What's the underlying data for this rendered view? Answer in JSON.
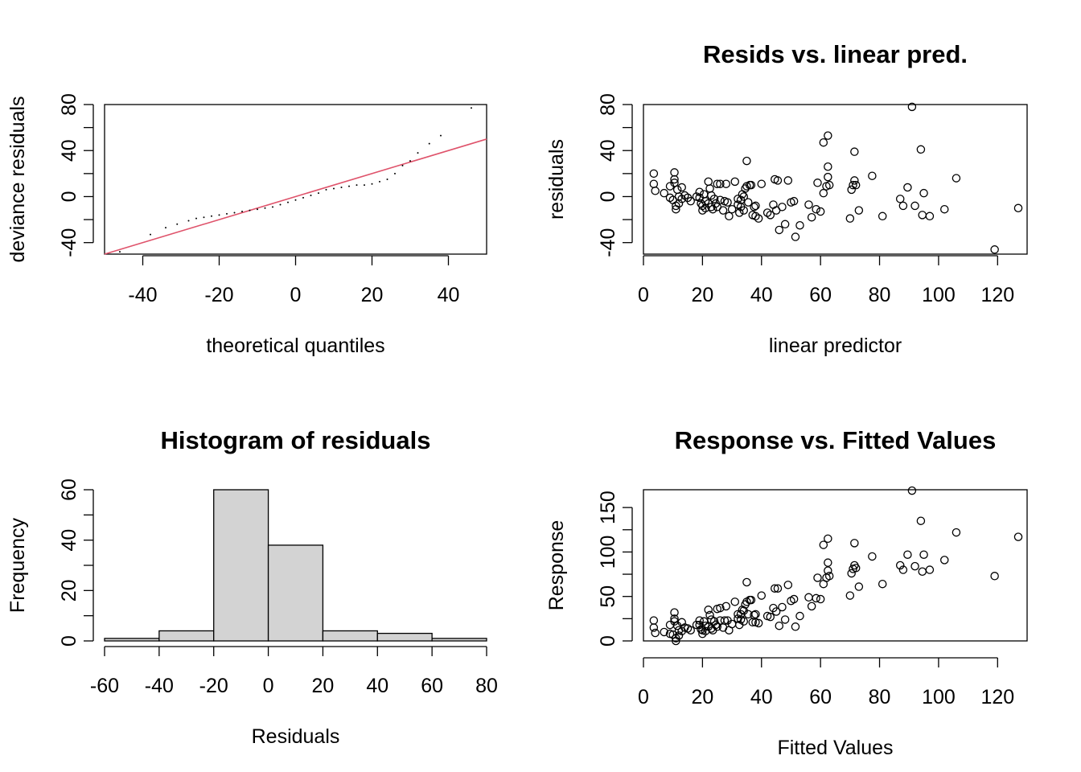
{
  "colors": {
    "qq_line": "#DF536B",
    "hist_fill": "#D3D3D3",
    "ink": "#000000"
  },
  "chart_data": [
    {
      "type": "scatter",
      "title": "",
      "xlabel": "theoretical quantiles",
      "ylabel": "deviance residuals",
      "xlim": [
        -50,
        50
      ],
      "ylim": [
        -50,
        80
      ],
      "xticks": [
        "-40",
        "-20",
        "0",
        "20",
        "40"
      ],
      "yticks": [
        "-40",
        "0",
        "40",
        "80"
      ],
      "reference_line": {
        "x": [
          -50,
          50
        ],
        "y": [
          -50,
          50
        ]
      },
      "points": [
        [
          -46,
          -48
        ],
        [
          -38,
          -33
        ],
        [
          -34,
          -27
        ],
        [
          -31,
          -24
        ],
        [
          -28,
          -21
        ],
        [
          -26,
          -19
        ],
        [
          -24,
          -18
        ],
        [
          -22,
          -17
        ],
        [
          -20,
          -16
        ],
        [
          -18,
          -15
        ],
        [
          -16,
          -14
        ],
        [
          -14,
          -13
        ],
        [
          -12,
          -12
        ],
        [
          -10,
          -11
        ],
        [
          -8,
          -10
        ],
        [
          -6,
          -9
        ],
        [
          -4,
          -7
        ],
        [
          -2,
          -5
        ],
        [
          0,
          -3
        ],
        [
          2,
          -1
        ],
        [
          4,
          1
        ],
        [
          6,
          3
        ],
        [
          8,
          6
        ],
        [
          10,
          7
        ],
        [
          12,
          8
        ],
        [
          14,
          9
        ],
        [
          16,
          10
        ],
        [
          18,
          10
        ],
        [
          20,
          11
        ],
        [
          22,
          13
        ],
        [
          24,
          15
        ],
        [
          26,
          20
        ],
        [
          28,
          27
        ],
        [
          30,
          31
        ],
        [
          32,
          38
        ],
        [
          35,
          46
        ],
        [
          38,
          53
        ],
        [
          46,
          77
        ]
      ]
    },
    {
      "type": "scatter",
      "title": "Resids vs. linear pred.",
      "xlabel": "linear predictor",
      "ylabel": "residuals",
      "xlim": [
        0,
        130
      ],
      "ylim": [
        -50,
        80
      ],
      "xticks": [
        "0",
        "20",
        "40",
        "60",
        "80",
        "100",
        "120"
      ],
      "yticks": [
        "-40",
        "0",
        "40",
        "80"
      ],
      "points": [
        [
          3.5,
          20
        ],
        [
          3.5,
          11
        ],
        [
          4,
          5
        ],
        [
          7,
          3
        ],
        [
          9,
          9
        ],
        [
          9,
          -1
        ],
        [
          10,
          -3
        ],
        [
          10.5,
          21
        ],
        [
          10.5,
          15
        ],
        [
          10.5,
          12
        ],
        [
          11,
          -8
        ],
        [
          11,
          -11
        ],
        [
          11.5,
          6
        ],
        [
          12,
          0
        ],
        [
          12,
          -6
        ],
        [
          13,
          8
        ],
        [
          13,
          -2
        ],
        [
          14,
          1
        ],
        [
          15,
          -1
        ],
        [
          16,
          -4
        ],
        [
          18,
          0
        ],
        [
          19,
          -1
        ],
        [
          19,
          4
        ],
        [
          19.5,
          -6
        ],
        [
          20,
          -12
        ],
        [
          20,
          -8
        ],
        [
          20.5,
          2
        ],
        [
          21,
          -4
        ],
        [
          21,
          -10
        ],
        [
          22,
          13
        ],
        [
          22,
          -6
        ],
        [
          22.5,
          7
        ],
        [
          23,
          1
        ],
        [
          23,
          -9
        ],
        [
          23.5,
          -11
        ],
        [
          24,
          -2
        ],
        [
          24.5,
          -6
        ],
        [
          25,
          11
        ],
        [
          25,
          -9
        ],
        [
          26,
          -3
        ],
        [
          26,
          11
        ],
        [
          27,
          -12
        ],
        [
          27.5,
          -4
        ],
        [
          28,
          11
        ],
        [
          28.5,
          -5
        ],
        [
          29,
          -17
        ],
        [
          30,
          -11
        ],
        [
          31,
          13
        ],
        [
          32,
          -2
        ],
        [
          32,
          -7
        ],
        [
          32.5,
          -14
        ],
        [
          33,
          -3
        ],
        [
          33,
          -9
        ],
        [
          33.5,
          2
        ],
        [
          34,
          0
        ],
        [
          34,
          -12
        ],
        [
          34.5,
          7
        ],
        [
          35,
          31
        ],
        [
          35,
          9
        ],
        [
          35.5,
          -5
        ],
        [
          36,
          10
        ],
        [
          36.5,
          10
        ],
        [
          37,
          -16
        ],
        [
          37.5,
          -9
        ],
        [
          38,
          -8
        ],
        [
          38,
          -17
        ],
        [
          39,
          -19
        ],
        [
          40,
          11
        ],
        [
          42,
          -14
        ],
        [
          43,
          -16
        ],
        [
          44,
          -7
        ],
        [
          44.5,
          15
        ],
        [
          45,
          -12
        ],
        [
          45.5,
          14
        ],
        [
          46,
          -29
        ],
        [
          47,
          -9
        ],
        [
          48,
          -24
        ],
        [
          49,
          14
        ],
        [
          50,
          -5
        ],
        [
          51,
          -4
        ],
        [
          51.5,
          -35
        ],
        [
          53,
          -25
        ],
        [
          56,
          -7
        ],
        [
          57,
          -18
        ],
        [
          58.5,
          -11
        ],
        [
          59,
          12
        ],
        [
          60,
          -13
        ],
        [
          61,
          3
        ],
        [
          61,
          47
        ],
        [
          62,
          9
        ],
        [
          62.5,
          53
        ],
        [
          62.5,
          26
        ],
        [
          62.5,
          17
        ],
        [
          63,
          10
        ],
        [
          70,
          -19
        ],
        [
          70.5,
          6
        ],
        [
          71,
          10
        ],
        [
          71.5,
          39
        ],
        [
          71.5,
          14
        ],
        [
          72,
          10
        ],
        [
          73,
          -12
        ],
        [
          77.5,
          18
        ],
        [
          81,
          -17
        ],
        [
          87,
          -2
        ],
        [
          88,
          -8
        ],
        [
          89.5,
          8
        ],
        [
          91,
          78
        ],
        [
          92,
          -8
        ],
        [
          94,
          41
        ],
        [
          94.5,
          -16
        ],
        [
          95,
          3
        ],
        [
          97,
          -17
        ],
        [
          102,
          -11
        ],
        [
          106,
          16
        ],
        [
          119,
          -46
        ],
        [
          127,
          -10
        ]
      ]
    },
    {
      "type": "bar",
      "title": "Histogram of residuals",
      "xlabel": "Residuals",
      "ylabel": "Frequency",
      "xlim": [
        -60,
        80
      ],
      "ylim": [
        0,
        60
      ],
      "xticks": [
        "-60",
        "-40",
        "-20",
        "0",
        "20",
        "40",
        "60",
        "80"
      ],
      "yticks": [
        "0",
        "20",
        "40",
        "60"
      ],
      "bins": [
        [
          -60,
          -40,
          1
        ],
        [
          -40,
          -20,
          4
        ],
        [
          -20,
          0,
          60
        ],
        [
          0,
          20,
          38
        ],
        [
          20,
          40,
          4
        ],
        [
          40,
          60,
          3
        ],
        [
          60,
          80,
          1
        ]
      ]
    },
    {
      "type": "scatter",
      "title": "Response vs. Fitted Values",
      "xlabel": "Fitted Values",
      "ylabel": "Response",
      "xlim": [
        0,
        130
      ],
      "ylim": [
        0,
        170
      ],
      "xticks": [
        "0",
        "20",
        "40",
        "60",
        "80",
        "100",
        "120"
      ],
      "yticks": [
        "0",
        "50",
        "100",
        "150"
      ],
      "points": [
        [
          3.5,
          23
        ],
        [
          3.5,
          15
        ],
        [
          4,
          9
        ],
        [
          7,
          10
        ],
        [
          9,
          18
        ],
        [
          9,
          8
        ],
        [
          10,
          7
        ],
        [
          10.5,
          32
        ],
        [
          10.5,
          25
        ],
        [
          10.5,
          22
        ],
        [
          11,
          3
        ],
        [
          11,
          0
        ],
        [
          11.5,
          17
        ],
        [
          12,
          12
        ],
        [
          12,
          6
        ],
        [
          13,
          21
        ],
        [
          13,
          11
        ],
        [
          14,
          15
        ],
        [
          15,
          14
        ],
        [
          16,
          12
        ],
        [
          18,
          18
        ],
        [
          19,
          18
        ],
        [
          19,
          23
        ],
        [
          19.5,
          13
        ],
        [
          20,
          8
        ],
        [
          20,
          12
        ],
        [
          20.5,
          22
        ],
        [
          21,
          17
        ],
        [
          21,
          11
        ],
        [
          22,
          35
        ],
        [
          22,
          16
        ],
        [
          22.5,
          29
        ],
        [
          23,
          24
        ],
        [
          23,
          14
        ],
        [
          23.5,
          12
        ],
        [
          24,
          22
        ],
        [
          24.5,
          18
        ],
        [
          25,
          36
        ],
        [
          25,
          16
        ],
        [
          26,
          23
        ],
        [
          26,
          37
        ],
        [
          27,
          15
        ],
        [
          27.5,
          23
        ],
        [
          28,
          39
        ],
        [
          28.5,
          23
        ],
        [
          29,
          12
        ],
        [
          30,
          19
        ],
        [
          31,
          44
        ],
        [
          32,
          30
        ],
        [
          32,
          25
        ],
        [
          32.5,
          18
        ],
        [
          33,
          30
        ],
        [
          33,
          24
        ],
        [
          33.5,
          35
        ],
        [
          34,
          34
        ],
        [
          34,
          22
        ],
        [
          34.5,
          41
        ],
        [
          35,
          66
        ],
        [
          35,
          44
        ],
        [
          35.5,
          30
        ],
        [
          36,
          46
        ],
        [
          36.5,
          46
        ],
        [
          37,
          21
        ],
        [
          37.5,
          29
        ],
        [
          38,
          30
        ],
        [
          38,
          21
        ],
        [
          39,
          20
        ],
        [
          40,
          51
        ],
        [
          42,
          28
        ],
        [
          43,
          27
        ],
        [
          44,
          37
        ],
        [
          44.5,
          59
        ],
        [
          45,
          33
        ],
        [
          45.5,
          59
        ],
        [
          46,
          17
        ],
        [
          47,
          38
        ],
        [
          48,
          24
        ],
        [
          49,
          63
        ],
        [
          50,
          45
        ],
        [
          51,
          47
        ],
        [
          51.5,
          16
        ],
        [
          53,
          28
        ],
        [
          56,
          49
        ],
        [
          57,
          39
        ],
        [
          58.5,
          48
        ],
        [
          59,
          71
        ],
        [
          60,
          47
        ],
        [
          61,
          64
        ],
        [
          61,
          108
        ],
        [
          62,
          71
        ],
        [
          62.5,
          115
        ],
        [
          62.5,
          88
        ],
        [
          62.5,
          79
        ],
        [
          63,
          73
        ],
        [
          70,
          51
        ],
        [
          70.5,
          76
        ],
        [
          71,
          81
        ],
        [
          71.5,
          110
        ],
        [
          71.5,
          85
        ],
        [
          72,
          82
        ],
        [
          73,
          61
        ],
        [
          77.5,
          95
        ],
        [
          81,
          64
        ],
        [
          87,
          85
        ],
        [
          88,
          80
        ],
        [
          89.5,
          97
        ],
        [
          91,
          169
        ],
        [
          92,
          84
        ],
        [
          94,
          135
        ],
        [
          94.5,
          78
        ],
        [
          95,
          97
        ],
        [
          97,
          80
        ],
        [
          102,
          91
        ],
        [
          106,
          122
        ],
        [
          119,
          73
        ],
        [
          127,
          117
        ]
      ]
    }
  ]
}
